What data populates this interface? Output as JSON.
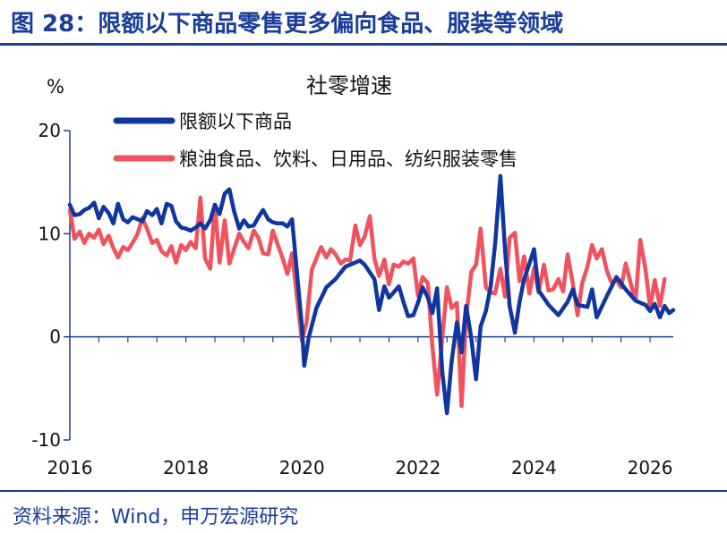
{
  "header": {
    "title": "图 28：限额以下商品零售更多偏向食品、服装等领域"
  },
  "footer": {
    "source": "资料来源：Wind，申万宏源研究"
  },
  "colors": {
    "brand": "#1a3d9a",
    "series_blue": "#10369f",
    "series_red": "#f0535e",
    "axis": "#1f3f8f"
  },
  "chart_data": {
    "type": "line",
    "title": "社零增速",
    "ylabel": "%",
    "ylim": [
      -10,
      20
    ],
    "yticks": [
      -10,
      0,
      10,
      20
    ],
    "xlim": [
      2016,
      2026.4
    ],
    "xticks": [
      2016,
      2018,
      2020,
      2022,
      2024,
      2026
    ],
    "legend_position": "top-left",
    "series": [
      {
        "name": "限额以下商品",
        "color": "#10369f",
        "points": [
          [
            2016.0,
            12.8
          ],
          [
            2016.08,
            11.8
          ],
          [
            2016.17,
            11.9
          ],
          [
            2016.25,
            12.3
          ],
          [
            2016.33,
            12.5
          ],
          [
            2016.42,
            13.0
          ],
          [
            2016.5,
            11.5
          ],
          [
            2016.58,
            12.6
          ],
          [
            2016.67,
            12.0
          ],
          [
            2016.75,
            11.0
          ],
          [
            2016.83,
            12.9
          ],
          [
            2016.92,
            11.4
          ],
          [
            2017.0,
            11.1
          ],
          [
            2017.08,
            11.6
          ],
          [
            2017.17,
            11.4
          ],
          [
            2017.25,
            11.2
          ],
          [
            2017.33,
            12.2
          ],
          [
            2017.42,
            11.8
          ],
          [
            2017.5,
            12.4
          ],
          [
            2017.58,
            11.0
          ],
          [
            2017.67,
            12.9
          ],
          [
            2017.75,
            12.7
          ],
          [
            2017.83,
            11.2
          ],
          [
            2017.92,
            10.6
          ],
          [
            2018.0,
            10.5
          ],
          [
            2018.08,
            10.3
          ],
          [
            2018.17,
            10.6
          ],
          [
            2018.25,
            11.0
          ],
          [
            2018.33,
            10.5
          ],
          [
            2018.42,
            11.3
          ],
          [
            2018.5,
            12.8
          ],
          [
            2018.58,
            11.9
          ],
          [
            2018.67,
            13.9
          ],
          [
            2018.75,
            14.3
          ],
          [
            2018.83,
            12.2
          ],
          [
            2018.92,
            10.5
          ],
          [
            2019.0,
            11.3
          ],
          [
            2019.08,
            10.7
          ],
          [
            2019.17,
            10.8
          ],
          [
            2019.25,
            11.6
          ],
          [
            2019.33,
            12.3
          ],
          [
            2019.42,
            11.4
          ],
          [
            2019.5,
            11.1
          ],
          [
            2019.58,
            11.0
          ],
          [
            2019.67,
            11.0
          ],
          [
            2019.75,
            10.7
          ],
          [
            2019.83,
            11.4
          ],
          [
            2020.0,
            1.0
          ],
          [
            2020.04,
            -2.8
          ],
          [
            2020.12,
            0.0
          ],
          [
            2020.25,
            2.8
          ],
          [
            2020.42,
            4.8
          ],
          [
            2020.58,
            5.6
          ],
          [
            2020.75,
            6.8
          ],
          [
            2020.92,
            7.2
          ],
          [
            2021.0,
            7.4
          ],
          [
            2021.08,
            7.0
          ],
          [
            2021.25,
            5.6
          ],
          [
            2021.33,
            2.6
          ],
          [
            2021.42,
            4.9
          ],
          [
            2021.5,
            3.8
          ],
          [
            2021.58,
            4.3
          ],
          [
            2021.67,
            4.9
          ],
          [
            2021.75,
            3.4
          ],
          [
            2021.83,
            2.0
          ],
          [
            2021.92,
            2.1
          ],
          [
            2022.0,
            3.3
          ],
          [
            2022.08,
            4.8
          ],
          [
            2022.17,
            3.8
          ],
          [
            2022.25,
            2.3
          ],
          [
            2022.33,
            4.7
          ],
          [
            2022.42,
            -3.5
          ],
          [
            2022.5,
            -7.4
          ],
          [
            2022.58,
            -2.4
          ],
          [
            2022.67,
            1.4
          ],
          [
            2022.75,
            -1.5
          ],
          [
            2022.83,
            3.0
          ],
          [
            2022.92,
            -0.2
          ],
          [
            2023.0,
            -4.1
          ],
          [
            2023.08,
            1.0
          ],
          [
            2023.17,
            2.5
          ],
          [
            2023.25,
            4.8
          ],
          [
            2023.33,
            9.0
          ],
          [
            2023.42,
            15.6
          ],
          [
            2023.5,
            8.4
          ],
          [
            2023.58,
            3.0
          ],
          [
            2023.67,
            0.4
          ],
          [
            2023.75,
            3.4
          ],
          [
            2023.83,
            5.6
          ],
          [
            2023.92,
            7.1
          ],
          [
            2024.0,
            8.5
          ],
          [
            2024.08,
            4.5
          ],
          [
            2024.25,
            3.1
          ],
          [
            2024.42,
            2.1
          ],
          [
            2024.58,
            3.4
          ],
          [
            2024.67,
            4.6
          ],
          [
            2024.75,
            3.1
          ],
          [
            2024.92,
            2.9
          ],
          [
            2025.0,
            4.6
          ],
          [
            2025.08,
            1.9
          ],
          [
            2025.25,
            3.9
          ],
          [
            2025.42,
            5.8
          ],
          [
            2025.58,
            4.6
          ],
          [
            2025.75,
            3.5
          ],
          [
            2025.92,
            3.1
          ],
          [
            2026.0,
            2.5
          ],
          [
            2026.08,
            3.2
          ],
          [
            2026.17,
            1.9
          ],
          [
            2026.25,
            3.0
          ],
          [
            2026.33,
            2.3
          ],
          [
            2026.4,
            2.6
          ]
        ]
      },
      {
        "name": "粮油食品、饮料、日用品、纺织服装零售",
        "color": "#f0535e",
        "points": [
          [
            2016.0,
            12.3
          ],
          [
            2016.08,
            9.5
          ],
          [
            2016.17,
            10.2
          ],
          [
            2016.25,
            9.1
          ],
          [
            2016.33,
            10.0
          ],
          [
            2016.42,
            9.6
          ],
          [
            2016.5,
            10.4
          ],
          [
            2016.58,
            9.0
          ],
          [
            2016.67,
            9.8
          ],
          [
            2016.75,
            8.6
          ],
          [
            2016.83,
            7.7
          ],
          [
            2016.92,
            8.7
          ],
          [
            2017.0,
            8.4
          ],
          [
            2017.08,
            9.1
          ],
          [
            2017.17,
            10.0
          ],
          [
            2017.25,
            11.5
          ],
          [
            2017.33,
            10.5
          ],
          [
            2017.42,
            9.1
          ],
          [
            2017.5,
            9.4
          ],
          [
            2017.58,
            8.3
          ],
          [
            2017.67,
            7.9
          ],
          [
            2017.75,
            8.8
          ],
          [
            2017.83,
            7.2
          ],
          [
            2017.92,
            8.9
          ],
          [
            2018.0,
            8.4
          ],
          [
            2018.08,
            9.2
          ],
          [
            2018.17,
            8.6
          ],
          [
            2018.25,
            13.5
          ],
          [
            2018.33,
            7.6
          ],
          [
            2018.42,
            6.6
          ],
          [
            2018.5,
            12.8
          ],
          [
            2018.58,
            7.2
          ],
          [
            2018.67,
            11.3
          ],
          [
            2018.75,
            7.1
          ],
          [
            2018.83,
            8.5
          ],
          [
            2018.92,
            10.0
          ],
          [
            2019.0,
            9.2
          ],
          [
            2019.08,
            8.6
          ],
          [
            2019.17,
            10.3
          ],
          [
            2019.25,
            9.6
          ],
          [
            2019.33,
            8.1
          ],
          [
            2019.42,
            8.0
          ],
          [
            2019.5,
            10.3
          ],
          [
            2019.58,
            9.0
          ],
          [
            2019.67,
            7.6
          ],
          [
            2019.75,
            6.1
          ],
          [
            2019.83,
            8.1
          ],
          [
            2020.0,
            -0.4
          ],
          [
            2020.08,
            1.4
          ],
          [
            2020.17,
            6.5
          ],
          [
            2020.25,
            7.6
          ],
          [
            2020.33,
            8.7
          ],
          [
            2020.42,
            7.7
          ],
          [
            2020.5,
            8.5
          ],
          [
            2020.58,
            8.0
          ],
          [
            2020.67,
            7.1
          ],
          [
            2020.75,
            7.5
          ],
          [
            2020.83,
            7.4
          ],
          [
            2020.92,
            10.8
          ],
          [
            2021.0,
            8.9
          ],
          [
            2021.08,
            9.7
          ],
          [
            2021.17,
            11.7
          ],
          [
            2021.25,
            7.6
          ],
          [
            2021.33,
            5.9
          ],
          [
            2021.42,
            7.5
          ],
          [
            2021.5,
            5.1
          ],
          [
            2021.58,
            7.0
          ],
          [
            2021.67,
            6.8
          ],
          [
            2021.75,
            7.3
          ],
          [
            2021.83,
            7.1
          ],
          [
            2021.92,
            7.6
          ],
          [
            2022.0,
            4.0
          ],
          [
            2022.08,
            5.8
          ],
          [
            2022.17,
            5.2
          ],
          [
            2022.25,
            -1.0
          ],
          [
            2022.33,
            -5.6
          ],
          [
            2022.42,
            0.0
          ],
          [
            2022.5,
            4.8
          ],
          [
            2022.58,
            2.8
          ],
          [
            2022.67,
            3.3
          ],
          [
            2022.75,
            -6.7
          ],
          [
            2022.83,
            1.9
          ],
          [
            2022.92,
            6.3
          ],
          [
            2023.0,
            7.0
          ],
          [
            2023.08,
            10.5
          ],
          [
            2023.17,
            4.8
          ],
          [
            2023.25,
            4.3
          ],
          [
            2023.33,
            4.2
          ],
          [
            2023.42,
            6.6
          ],
          [
            2023.5,
            3.9
          ],
          [
            2023.58,
            9.6
          ],
          [
            2023.67,
            10.1
          ],
          [
            2023.75,
            5.4
          ],
          [
            2023.83,
            7.8
          ],
          [
            2023.92,
            4.2
          ],
          [
            2024.0,
            6.7
          ],
          [
            2024.08,
            4.3
          ],
          [
            2024.17,
            7.0
          ],
          [
            2024.25,
            4.5
          ],
          [
            2024.33,
            4.6
          ],
          [
            2024.42,
            5.6
          ],
          [
            2024.5,
            4.4
          ],
          [
            2024.58,
            8.0
          ],
          [
            2024.67,
            5.1
          ],
          [
            2024.75,
            2.1
          ],
          [
            2024.83,
            5.2
          ],
          [
            2024.92,
            6.8
          ],
          [
            2025.0,
            8.9
          ],
          [
            2025.08,
            7.6
          ],
          [
            2025.17,
            8.5
          ],
          [
            2025.25,
            6.5
          ],
          [
            2025.33,
            5.3
          ],
          [
            2025.42,
            5.5
          ],
          [
            2025.5,
            4.8
          ],
          [
            2025.58,
            7.1
          ],
          [
            2025.67,
            5.1
          ],
          [
            2025.75,
            3.5
          ],
          [
            2025.83,
            9.4
          ],
          [
            2025.92,
            6.6
          ],
          [
            2026.0,
            2.8
          ],
          [
            2026.08,
            5.5
          ],
          [
            2026.17,
            3.0
          ],
          [
            2026.25,
            5.6
          ]
        ]
      }
    ]
  }
}
